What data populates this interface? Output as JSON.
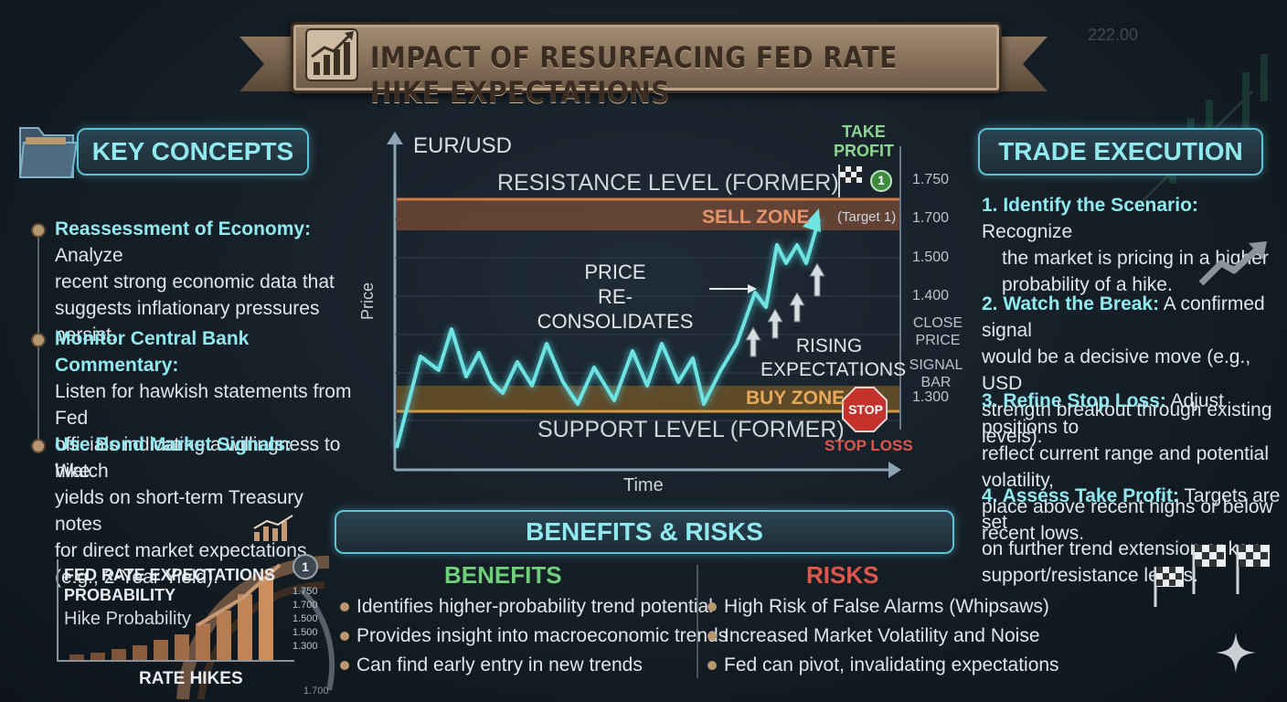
{
  "title": "IMPACT OF RESURFACING FED RATE HIKE EXPECTATIONS",
  "key_concepts": {
    "heading": "KEY CONCEPTS",
    "items": [
      {
        "term": "Reassessment of Economy:",
        "line1": " Analyze",
        "line2": "recent strong economic data that",
        "line3": "suggests inflationary pressures persist."
      },
      {
        "term": "Monitor Central Bank Commentary:",
        "line1": "",
        "line2": "Listen for hawkish statements from Fed",
        "line3": "officials indicating a willingness to hike."
      },
      {
        "term": "Use Bond Market Signals:",
        "line1": " Watch",
        "line2": "yields on short-term Treasury notes",
        "line3": "for direct market expectations",
        "line4": "(e.g., 2-Year Yield)."
      }
    ]
  },
  "mini_chart": {
    "title1": "FED RATE EXPECTATIONS",
    "title2": "PROBABILITY",
    "subtitle": "Hike Probability",
    "xlabel": "RATE HIKES",
    "badge": "1",
    "ticks": [
      "1.750",
      "1.700",
      "1.500",
      "1.500",
      "1.300"
    ],
    "bottom_tick": "1.700"
  },
  "chart_data": {
    "type": "line",
    "title": "EUR/USD",
    "xlabel": "Time",
    "ylabel": "Price",
    "y_ticks": [
      "1.750",
      "1.700",
      "1.500",
      "1.400",
      "1.300"
    ],
    "annotations": {
      "resistance": "RESISTANCE LEVEL (FORMER)",
      "sell_zone": "SELL ZONE",
      "support": "SUPPORT LEVEL (FORMER)",
      "buy_zone": "BUY ZONE",
      "reconsolidates1": "PRICE",
      "reconsolidates2": "RE-CONSOLIDATES",
      "rising1": "RISING",
      "rising2": "EXPECTATIONS",
      "take_profit1": "TAKE",
      "take_profit2": "PROFIT",
      "target": "(Target 1)",
      "target_badge": "1",
      "close_price1": "CLOSE",
      "close_price2": "PRICE",
      "signal_bar1": "SIGNAL",
      "signal_bar2": "BAR",
      "stop": "STOP",
      "stop_loss": "STOP LOSS"
    }
  },
  "trade_execution": {
    "heading": "TRADE EXECUTION",
    "steps": [
      {
        "term": "1. Identify the Scenario:",
        "lines": [
          " Recognize",
          "the market is pricing in a higher",
          "probability of a hike."
        ]
      },
      {
        "term": "2. Watch the Break:",
        "lines": [
          " A confirmed signal",
          "would be a decisive move (e.g., USD",
          "strength breakout through existing levels)."
        ]
      },
      {
        "term": "3. Refine Stop Loss:",
        "lines": [
          " Adjust positions to",
          "reflect current range and potential volatility,",
          "place above recent highs or below recent lows."
        ]
      },
      {
        "term": "4. Assess Take Profit:",
        "lines": [
          " Targets are set",
          "on further trend extension or key",
          "support/resistance levels."
        ]
      }
    ]
  },
  "benefits_risks": {
    "heading": "BENEFITS & RISKS",
    "benefits_head": "BENEFITS",
    "risks_head": "RISKS",
    "benefits": [
      "Identifies higher-probability trend potential",
      "Provides insight into macroeconomic trends",
      "Can find early entry in new trends"
    ],
    "risks": [
      "High Risk of False Alarms (Whipsaws)",
      "Increased Market Volatility and Noise",
      "Fed can pivot, invalidating expectations"
    ]
  },
  "background_number": "222.00",
  "colors": {
    "accent": "#8fe9ef",
    "benefits": "#6fcf7a",
    "risks": "#e0574a",
    "zone": "#b87a45"
  }
}
